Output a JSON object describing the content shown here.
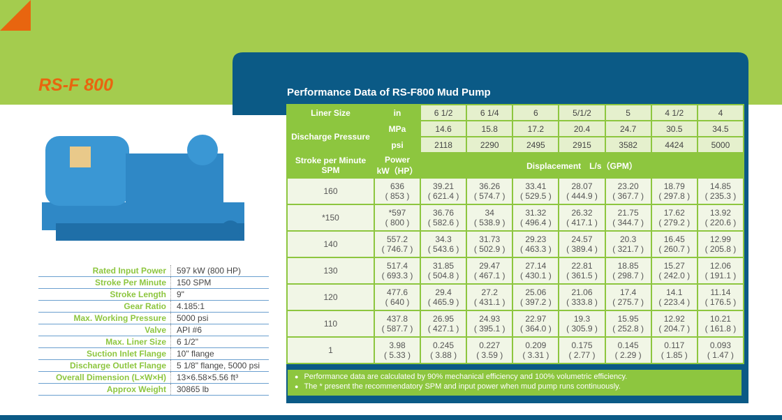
{
  "header": {
    "title": "RS-F 800"
  },
  "specs": [
    {
      "label": "Rated Input Power",
      "value": "597 kW (800 HP)"
    },
    {
      "label": "Stroke Per Minute",
      "value": "150 SPM"
    },
    {
      "label": "Stroke Length",
      "value": "9\""
    },
    {
      "label": "Gear Ratio",
      "value": "4.185:1"
    },
    {
      "label": "Max. Working Pressure",
      "value": "5000 psi"
    },
    {
      "label": "Valve",
      "value": "API #6"
    },
    {
      "label": "Max. Liner Size",
      "value": "6 1/2\""
    },
    {
      "label": "Suction Inlet Flange",
      "value": "10\" flange"
    },
    {
      "label": "Discharge Outlet Flange",
      "value": "5 1/8\" flange, 5000 psi"
    },
    {
      "label": "Overall Dimension (L×W×H)",
      "value": "13×6.58×5.56 ft³"
    },
    {
      "label": "Approx Weight",
      "value": "30865 lb"
    }
  ],
  "table": {
    "title": "Performance Data of RS-F800 Mud Pump",
    "liner_label": "Liner Size",
    "liner_unit": "in",
    "liners": [
      "6 1/2",
      "6 1/4",
      "6",
      "5/1/2",
      "5",
      "4 1/2",
      "4"
    ],
    "pressure_label": "Discharge Pressure",
    "mpa_unit": "MPa",
    "mpa": [
      "14.6",
      "15.8",
      "17.2",
      "20.4",
      "24.7",
      "30.5",
      "34.5"
    ],
    "psi_unit": "psi",
    "psi": [
      "2118",
      "2290",
      "2495",
      "2915",
      "3582",
      "4424",
      "5000"
    ],
    "spm_label": [
      "Stroke per Minute",
      "SPM"
    ],
    "power_label": [
      "Power",
      "kW（HP）"
    ],
    "displacement_label": "Displacement　L/s（GPM）",
    "rows": [
      {
        "spm": "160",
        "power": [
          "636",
          "( 853 )"
        ],
        "values": [
          [
            "39.21",
            "( 621.4 )"
          ],
          [
            "36.26",
            "( 574.7 )"
          ],
          [
            "33.41",
            "( 529.5 )"
          ],
          [
            "28.07",
            "( 444.9 )"
          ],
          [
            "23.20",
            "( 367.7 )"
          ],
          [
            "18.79",
            "( 297.8 )"
          ],
          [
            "14.85",
            "( 235.3 )"
          ]
        ]
      },
      {
        "spm": "*150",
        "power": [
          "*597",
          "( 800 )"
        ],
        "values": [
          [
            "36.76",
            "( 582.6 )"
          ],
          [
            "34",
            "( 538.9 )"
          ],
          [
            "31.32",
            "( 496.4 )"
          ],
          [
            "26.32",
            "( 417.1 )"
          ],
          [
            "21.75",
            "( 344.7 )"
          ],
          [
            "17.62",
            "( 279.2 )"
          ],
          [
            "13.92",
            "( 220.6 )"
          ]
        ]
      },
      {
        "spm": "140",
        "power": [
          "557.2",
          "( 746.7 )"
        ],
        "values": [
          [
            "34.3",
            "( 543.6 )"
          ],
          [
            "31.73",
            "( 502.9 )"
          ],
          [
            "29.23",
            "( 463.3 )"
          ],
          [
            "24.57",
            "( 389.4 )"
          ],
          [
            "20.3",
            "( 321.7 )"
          ],
          [
            "16.45",
            "( 260.7 )"
          ],
          [
            "12.99",
            "( 205.8 )"
          ]
        ]
      },
      {
        "spm": "130",
        "power": [
          "517.4",
          "( 693.3 )"
        ],
        "values": [
          [
            "31.85",
            "( 504.8 )"
          ],
          [
            "29.47",
            "( 467.1 )"
          ],
          [
            "27.14",
            "( 430.1 )"
          ],
          [
            "22.81",
            "( 361.5 )"
          ],
          [
            "18.85",
            "( 298.7 )"
          ],
          [
            "15.27",
            "( 242.0 )"
          ],
          [
            "12.06",
            "( 191.1 )"
          ]
        ]
      },
      {
        "spm": "120",
        "power": [
          "477.6",
          "( 640 )"
        ],
        "values": [
          [
            "29.4",
            "( 465.9 )"
          ],
          [
            "27.2",
            "( 431.1 )"
          ],
          [
            "25.06",
            "( 397.2 )"
          ],
          [
            "21.06",
            "( 333.8 )"
          ],
          [
            "17.4",
            "( 275.7 )"
          ],
          [
            "14.1",
            "( 223.4 )"
          ],
          [
            "11.14",
            "( 176.5 )"
          ]
        ]
      },
      {
        "spm": "110",
        "power": [
          "437.8",
          "( 587.7 )"
        ],
        "values": [
          [
            "26.95",
            "( 427.1 )"
          ],
          [
            "24.93",
            "( 395.1 )"
          ],
          [
            "22.97",
            "( 364.0 )"
          ],
          [
            "19.3",
            "( 305.9 )"
          ],
          [
            "15.95",
            "( 252.8 )"
          ],
          [
            "12.92",
            "( 204.7 )"
          ],
          [
            "10.21",
            "( 161.8 )"
          ]
        ]
      },
      {
        "spm": "1",
        "power": [
          "3.98",
          "( 5.33 )"
        ],
        "values": [
          [
            "0.245",
            "( 3.88 )"
          ],
          [
            "0.227",
            "( 3.59 )"
          ],
          [
            "0.209",
            "( 3.31 )"
          ],
          [
            "0.175",
            "( 2.77 )"
          ],
          [
            "0.145",
            "( 2.29 )"
          ],
          [
            "0.117",
            "( 1.85 )"
          ],
          [
            "0.093",
            "( 1.47 )"
          ]
        ]
      }
    ],
    "notes": [
      "Performance data are calculated by 90% mechanical efficiency and 100% volumetric efficiency.",
      "The * present the recommendatory SPM and input power when mud pump runs continuously."
    ]
  }
}
